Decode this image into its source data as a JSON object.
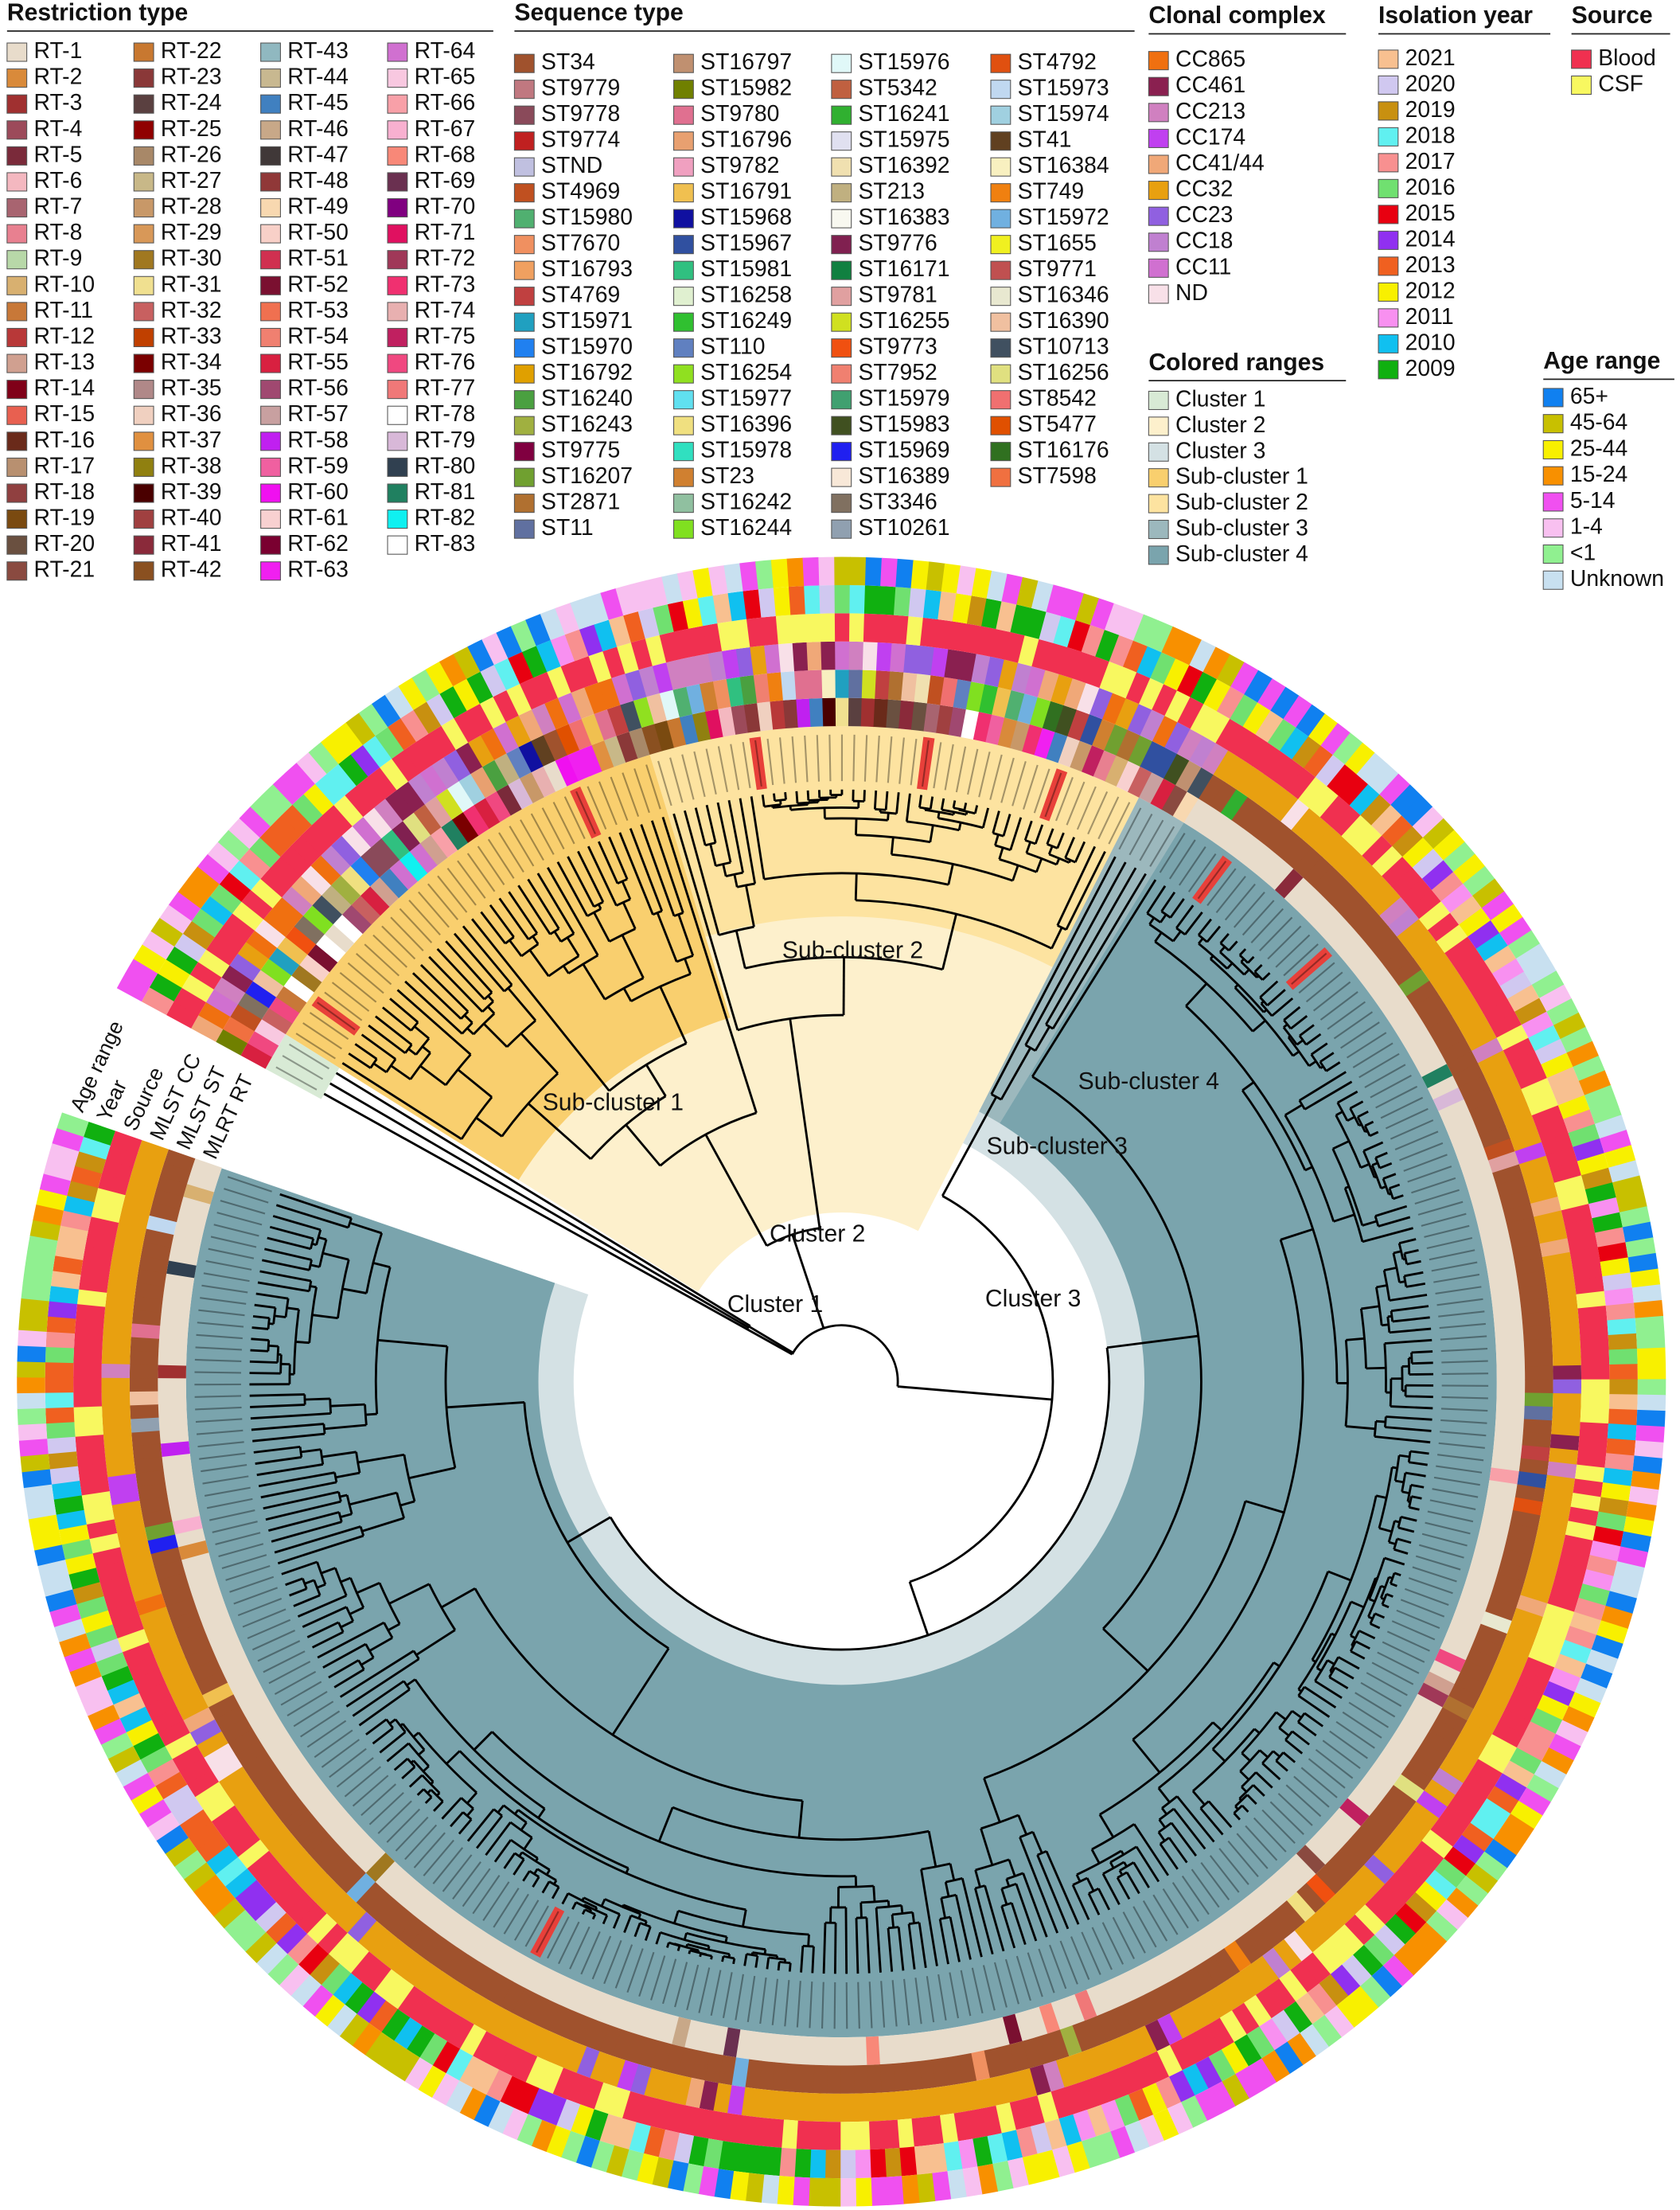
{
  "legends": {
    "restriction_type": {
      "title": "Restriction type",
      "items": [
        {
          "label": "RT-1",
          "color": "#e8dccb"
        },
        {
          "label": "RT-2",
          "color": "#d98a3a"
        },
        {
          "label": "RT-3",
          "color": "#a03030"
        },
        {
          "label": "RT-4",
          "color": "#9c4a5a"
        },
        {
          "label": "RT-5",
          "color": "#7a2a3a"
        },
        {
          "label": "RT-6",
          "color": "#f4b8c0"
        },
        {
          "label": "RT-7",
          "color": "#a86470"
        },
        {
          "label": "RT-8",
          "color": "#e88090"
        },
        {
          "label": "RT-9",
          "color": "#b8d8a8"
        },
        {
          "label": "RT-10",
          "color": "#d8b070"
        },
        {
          "label": "RT-11",
          "color": "#c87838"
        },
        {
          "label": "RT-12",
          "color": "#b83838"
        },
        {
          "label": "RT-13",
          "color": "#d0a090"
        },
        {
          "label": "RT-14",
          "color": "#800018"
        },
        {
          "label": "RT-15",
          "color": "#e86050"
        },
        {
          "label": "RT-16",
          "color": "#6a2a1a"
        },
        {
          "label": "RT-17",
          "color": "#b89070"
        },
        {
          "label": "RT-18",
          "color": "#904040"
        },
        {
          "label": "RT-19",
          "color": "#7a4a10"
        },
        {
          "label": "RT-20",
          "color": "#6a5040"
        },
        {
          "label": "RT-21",
          "color": "#8a4a40"
        },
        {
          "label": "RT-22",
          "color": "#c87830"
        },
        {
          "label": "RT-23",
          "color": "#8a3838"
        },
        {
          "label": "RT-24",
          "color": "#5a4040"
        },
        {
          "label": "RT-25",
          "color": "#900000"
        },
        {
          "label": "RT-26",
          "color": "#a88868"
        },
        {
          "label": "RT-27",
          "color": "#c8b888"
        },
        {
          "label": "RT-28",
          "color": "#c89868"
        },
        {
          "label": "RT-29",
          "color": "#d89858"
        },
        {
          "label": "RT-30",
          "color": "#a07820"
        },
        {
          "label": "RT-31",
          "color": "#f0e090"
        },
        {
          "label": "RT-32",
          "color": "#c86060"
        },
        {
          "label": "RT-33",
          "color": "#c04000"
        },
        {
          "label": "RT-34",
          "color": "#7a0000"
        },
        {
          "label": "RT-35",
          "color": "#b08888"
        },
        {
          "label": "RT-36",
          "color": "#f0d0c0"
        },
        {
          "label": "RT-37",
          "color": "#e09040"
        },
        {
          "label": "RT-38",
          "color": "#908010"
        },
        {
          "label": "RT-39",
          "color": "#4a0000"
        },
        {
          "label": "RT-40",
          "color": "#a04040"
        },
        {
          "label": "RT-41",
          "color": "#8a2a3a"
        },
        {
          "label": "RT-42",
          "color": "#8a5020"
        },
        {
          "label": "RT-43",
          "color": "#90b8c0"
        },
        {
          "label": "RT-44",
          "color": "#c8b890"
        },
        {
          "label": "RT-45",
          "color": "#4080c0"
        },
        {
          "label": "RT-46",
          "color": "#c8a888"
        },
        {
          "label": "RT-47",
          "color": "#403838"
        },
        {
          "label": "RT-48",
          "color": "#903838"
        },
        {
          "label": "RT-49",
          "color": "#f8d8b0"
        },
        {
          "label": "RT-50",
          "color": "#f8d0c8"
        },
        {
          "label": "RT-51",
          "color": "#d03050"
        },
        {
          "label": "RT-52",
          "color": "#7a1030"
        },
        {
          "label": "RT-53",
          "color": "#f07050"
        },
        {
          "label": "RT-54",
          "color": "#f08070"
        },
        {
          "label": "RT-55",
          "color": "#d82040"
        },
        {
          "label": "RT-56",
          "color": "#a04870"
        },
        {
          "label": "RT-57",
          "color": "#c8a0a0"
        },
        {
          "label": "RT-58",
          "color": "#c020f0"
        },
        {
          "label": "RT-59",
          "color": "#f060a0"
        },
        {
          "label": "RT-60",
          "color": "#f010f0"
        },
        {
          "label": "RT-61",
          "color": "#f8d0d0"
        },
        {
          "label": "RT-62",
          "color": "#7a0030"
        },
        {
          "label": "RT-63",
          "color": "#f020f0"
        },
        {
          "label": "RT-64",
          "color": "#d070d0"
        },
        {
          "label": "RT-65",
          "color": "#f8c8e0"
        },
        {
          "label": "RT-66",
          "color": "#f8a0a8"
        },
        {
          "label": "RT-67",
          "color": "#f8b0d0"
        },
        {
          "label": "RT-68",
          "color": "#f88878"
        },
        {
          "label": "RT-69",
          "color": "#6a3050"
        },
        {
          "label": "RT-70",
          "color": "#800080"
        },
        {
          "label": "RT-71",
          "color": "#e01060"
        },
        {
          "label": "RT-72",
          "color": "#a03858"
        },
        {
          "label": "RT-73",
          "color": "#f03070"
        },
        {
          "label": "RT-74",
          "color": "#e8b0b0"
        },
        {
          "label": "RT-75",
          "color": "#c02060"
        },
        {
          "label": "RT-76",
          "color": "#f04880"
        },
        {
          "label": "RT-77",
          "color": "#f07878"
        },
        {
          "label": "RT-78",
          "color": "#ffffff"
        },
        {
          "label": "RT-79",
          "color": "#d8b8d8"
        },
        {
          "label": "RT-80",
          "color": "#304050"
        },
        {
          "label": "RT-81",
          "color": "#208060"
        },
        {
          "label": "RT-82",
          "color": "#10f0f0"
        },
        {
          "label": "RT-83",
          "color": "#ffffff"
        }
      ]
    },
    "sequence_type": {
      "title": "Sequence type",
      "items": [
        {
          "label": "ST34",
          "color": "#a0522d"
        },
        {
          "label": "ST9779",
          "color": "#c07880"
        },
        {
          "label": "ST9778",
          "color": "#8a4a5a"
        },
        {
          "label": "ST9774",
          "color": "#c02020"
        },
        {
          "label": "STND",
          "color": "#c0c0e0"
        },
        {
          "label": "ST4969",
          "color": "#c05020"
        },
        {
          "label": "ST15980",
          "color": "#50b070"
        },
        {
          "label": "ST7670",
          "color": "#f09060"
        },
        {
          "label": "ST16793",
          "color": "#f0a060"
        },
        {
          "label": "ST4769",
          "color": "#c04040"
        },
        {
          "label": "ST15971",
          "color": "#20a0c0"
        },
        {
          "label": "ST15970",
          "color": "#2080f0"
        },
        {
          "label": "ST16792",
          "color": "#e0a000"
        },
        {
          "label": "ST16240",
          "color": "#4aa040"
        },
        {
          "label": "ST16243",
          "color": "#a0b040"
        },
        {
          "label": "ST9775",
          "color": "#800040"
        },
        {
          "label": "ST16207",
          "color": "#70a030"
        },
        {
          "label": "ST2871",
          "color": "#b07030"
        },
        {
          "label": "ST11",
          "color": "#6070a0"
        },
        {
          "label": "ST16797",
          "color": "#c09070"
        },
        {
          "label": "ST15982",
          "color": "#708000"
        },
        {
          "label": "ST9780",
          "color": "#e07090"
        },
        {
          "label": "ST16796",
          "color": "#e8a070"
        },
        {
          "label": "ST9782",
          "color": "#f0a0c0"
        },
        {
          "label": "ST16791",
          "color": "#f0c050"
        },
        {
          "label": "ST15968",
          "color": "#1010a0"
        },
        {
          "label": "ST15967",
          "color": "#3050a0"
        },
        {
          "label": "ST15981",
          "color": "#30c080"
        },
        {
          "label": "ST16258",
          "color": "#e0f0d0"
        },
        {
          "label": "ST16249",
          "color": "#30c030"
        },
        {
          "label": "ST110",
          "color": "#6080c0"
        },
        {
          "label": "ST16254",
          "color": "#90e020"
        },
        {
          "label": "ST15977",
          "color": "#60e0f0"
        },
        {
          "label": "ST16396",
          "color": "#f0e080"
        },
        {
          "label": "ST15978",
          "color": "#30e0c0"
        },
        {
          "label": "ST23",
          "color": "#d08030"
        },
        {
          "label": "ST16242",
          "color": "#90c0a0"
        },
        {
          "label": "ST16244",
          "color": "#80e020"
        },
        {
          "label": "ST15976",
          "color": "#e0f8f8"
        },
        {
          "label": "ST5342",
          "color": "#c06040"
        },
        {
          "label": "ST16241",
          "color": "#30b030"
        },
        {
          "label": "ST15975",
          "color": "#e0e0f0"
        },
        {
          "label": "ST16392",
          "color": "#f0e0b0"
        },
        {
          "label": "ST213",
          "color": "#c0b080"
        },
        {
          "label": "ST16383",
          "color": "#f8f8f0"
        },
        {
          "label": "ST9776",
          "color": "#802050"
        },
        {
          "label": "ST16171",
          "color": "#108040"
        },
        {
          "label": "ST9781",
          "color": "#e0a0a0"
        },
        {
          "label": "ST16255",
          "color": "#d0e020"
        },
        {
          "label": "ST9773",
          "color": "#f05010"
        },
        {
          "label": "ST7952",
          "color": "#f08070"
        },
        {
          "label": "ST15979",
          "color": "#40a070"
        },
        {
          "label": "ST15983",
          "color": "#405020"
        },
        {
          "label": "ST15969",
          "color": "#2020f0"
        },
        {
          "label": "ST16389",
          "color": "#f8e8d8"
        },
        {
          "label": "ST3346",
          "color": "#807060"
        },
        {
          "label": "ST10261",
          "color": "#90a0b0"
        },
        {
          "label": "ST4792",
          "color": "#e05010"
        },
        {
          "label": "ST15973",
          "color": "#c0d8f0"
        },
        {
          "label": "ST15974",
          "color": "#a0d0e0"
        },
        {
          "label": "ST41",
          "color": "#604020"
        },
        {
          "label": "ST16384",
          "color": "#f8f0c0"
        },
        {
          "label": "ST749",
          "color": "#f08010"
        },
        {
          "label": "ST15972",
          "color": "#70b0e0"
        },
        {
          "label": "ST1655",
          "color": "#f0f020"
        },
        {
          "label": "ST9771",
          "color": "#c05050"
        },
        {
          "label": "ST16346",
          "color": "#e8e8d0"
        },
        {
          "label": "ST16390",
          "color": "#f0c0a0"
        },
        {
          "label": "ST10713",
          "color": "#405060"
        },
        {
          "label": "ST16256",
          "color": "#e0e080"
        },
        {
          "label": "ST8542",
          "color": "#f07070"
        },
        {
          "label": "ST5477",
          "color": "#e05000"
        },
        {
          "label": "ST16176",
          "color": "#307020"
        },
        {
          "label": "ST7598",
          "color": "#f07040"
        }
      ]
    },
    "clonal_complex": {
      "title": "Clonal complex",
      "items": [
        {
          "label": "CC865",
          "color": "#f07010"
        },
        {
          "label": "CC461",
          "color": "#8a2050"
        },
        {
          "label": "CC213",
          "color": "#d080c0"
        },
        {
          "label": "CC174",
          "color": "#c040f0"
        },
        {
          "label": "CC41/44",
          "color": "#f0a878"
        },
        {
          "label": "CC32",
          "color": "#e8a010"
        },
        {
          "label": "CC23",
          "color": "#9060e0"
        },
        {
          "label": "CC18",
          "color": "#c080d0"
        },
        {
          "label": "CC11",
          "color": "#d070d0"
        },
        {
          "label": "ND",
          "color": "#f8e0e8"
        }
      ]
    },
    "isolation_year": {
      "title": "Isolation year",
      "items": [
        {
          "label": "2021",
          "color": "#f8c090"
        },
        {
          "label": "2020",
          "color": "#d0c8f0"
        },
        {
          "label": "2019",
          "color": "#c89010"
        },
        {
          "label": "2018",
          "color": "#60f0f0"
        },
        {
          "label": "2017",
          "color": "#f89090"
        },
        {
          "label": "2016",
          "color": "#70e070"
        },
        {
          "label": "2015",
          "color": "#e80010"
        },
        {
          "label": "2014",
          "color": "#9030f0"
        },
        {
          "label": "2013",
          "color": "#f06020"
        },
        {
          "label": "2012",
          "color": "#f8f000"
        },
        {
          "label": "2011",
          "color": "#f890f0"
        },
        {
          "label": "2010",
          "color": "#10c0f0"
        },
        {
          "label": "2009",
          "color": "#10b010"
        }
      ]
    },
    "source": {
      "title": "Source",
      "items": [
        {
          "label": "Blood",
          "color": "#f03050"
        },
        {
          "label": "CSF",
          "color": "#f8f860"
        }
      ]
    },
    "colored_ranges": {
      "title": "Colored ranges",
      "items": [
        {
          "label": "Cluster 1",
          "color": "#d8ead5"
        },
        {
          "label": "Cluster 2",
          "color": "#fdf0cc"
        },
        {
          "label": "Cluster 3",
          "color": "#d4e1e4"
        },
        {
          "label": "Sub-cluster 1",
          "color": "#f9cf6e"
        },
        {
          "label": "Sub-cluster 2",
          "color": "#fde3a0"
        },
        {
          "label": "Sub-cluster 3",
          "color": "#9cb8bd"
        },
        {
          "label": "Sub-cluster 4",
          "color": "#7aa4ad"
        }
      ]
    },
    "age_range": {
      "title": "Age range",
      "items": [
        {
          "label": "65+",
          "color": "#1080f0"
        },
        {
          "label": "45-64",
          "color": "#c8c000"
        },
        {
          "label": "25-44",
          "color": "#f8f000"
        },
        {
          "label": "15-24",
          "color": "#f89000"
        },
        {
          "label": "5-14",
          "color": "#f050f0"
        },
        {
          "label": "1-4",
          "color": "#f8c0f0"
        },
        {
          "label": "<1",
          "color": "#90f090"
        },
        {
          "label": "Unknown",
          "color": "#c8e0f0"
        }
      ]
    }
  },
  "ring_labels": [
    "Age range",
    "Year",
    "Source",
    "MLST CC",
    "MLST ST",
    "MLRT RT"
  ]
}
